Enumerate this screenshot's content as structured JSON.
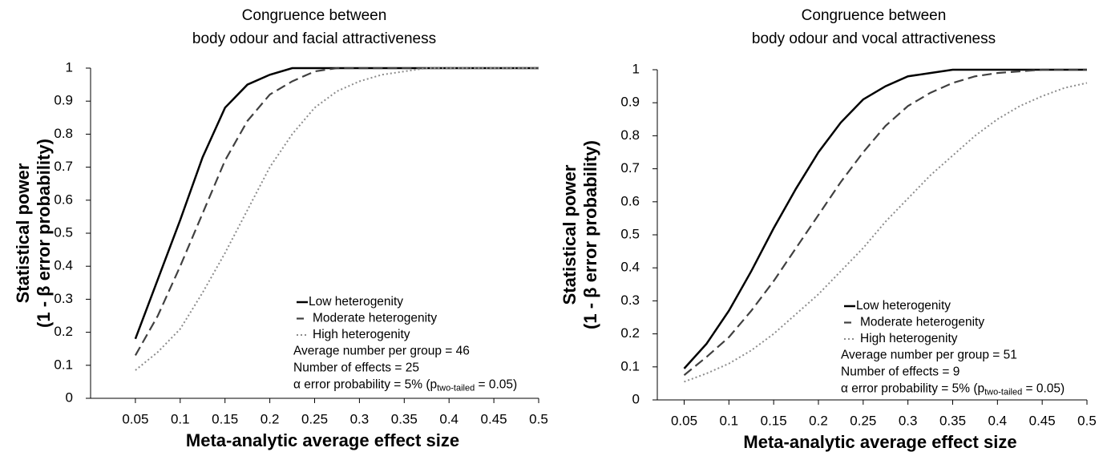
{
  "chart_data": [
    {
      "type": "line",
      "title": [
        "Congruence between",
        "body odour and facial attractiveness"
      ],
      "ylabel": [
        "Statistical power",
        "(1 - β error probability)"
      ],
      "xlabel": "Meta-analytic average effect size",
      "x": [
        0.05,
        0.075,
        0.1,
        0.125,
        0.15,
        0.175,
        0.2,
        0.225,
        0.25,
        0.275,
        0.3,
        0.325,
        0.35,
        0.375,
        0.4,
        0.425,
        0.45,
        0.475,
        0.5
      ],
      "series": [
        {
          "name": "Low heterogenity",
          "color": "#000000",
          "dash": "solid",
          "values": [
            0.18,
            0.36,
            0.54,
            0.73,
            0.88,
            0.95,
            0.98,
            1,
            1,
            1,
            1,
            1,
            1,
            1,
            1,
            1,
            1,
            1,
            1
          ]
        },
        {
          "name": "Moderate heterogenity",
          "color": "#404040",
          "dash": "dashed",
          "values": [
            0.13,
            0.25,
            0.4,
            0.56,
            0.72,
            0.84,
            0.92,
            0.96,
            0.99,
            1,
            1,
            1,
            1,
            1,
            1,
            1,
            1,
            1,
            1
          ]
        },
        {
          "name": "High heterogenity",
          "color": "#8c8c8c",
          "dash": "dotted",
          "values": [
            0.085,
            0.14,
            0.21,
            0.32,
            0.44,
            0.57,
            0.7,
            0.8,
            0.88,
            0.93,
            0.96,
            0.98,
            0.99,
            1,
            1,
            1,
            1,
            1,
            1
          ]
        }
      ],
      "annotations": [
        "Average number per group = 46",
        "Number of effects = 25"
      ],
      "alpha_note": [
        "α error probability = 5% (p",
        "two-tailed",
        " = 0.05)"
      ],
      "xlim": [
        0,
        0.5
      ],
      "ylim": [
        0,
        1
      ],
      "xticks": [
        0.05,
        0.1,
        0.15,
        0.2,
        0.25,
        0.3,
        0.35,
        0.4,
        0.45,
        0.5
      ],
      "yticks": [
        0,
        0.1,
        0.2,
        0.3,
        0.4,
        0.5,
        0.6,
        0.7,
        0.8,
        0.9,
        1
      ]
    },
    {
      "type": "line",
      "title": [
        "Congruence between",
        "body odour and vocal attractiveness"
      ],
      "ylabel": [
        "Statistical power",
        "(1 - β error probability)"
      ],
      "xlabel": "Meta-analytic average effect size",
      "x": [
        0.05,
        0.075,
        0.1,
        0.125,
        0.15,
        0.175,
        0.2,
        0.225,
        0.25,
        0.275,
        0.3,
        0.325,
        0.35,
        0.375,
        0.4,
        0.425,
        0.45,
        0.475,
        0.5
      ],
      "series": [
        {
          "name": "Low heterogenity",
          "color": "#000000",
          "dash": "solid",
          "values": [
            0.095,
            0.17,
            0.27,
            0.39,
            0.52,
            0.64,
            0.75,
            0.84,
            0.91,
            0.95,
            0.98,
            0.99,
            1,
            1,
            1,
            1,
            1,
            1,
            1
          ]
        },
        {
          "name": "Moderate heterogenity",
          "color": "#404040",
          "dash": "dashed",
          "values": [
            0.075,
            0.13,
            0.19,
            0.27,
            0.36,
            0.46,
            0.56,
            0.66,
            0.75,
            0.83,
            0.89,
            0.93,
            0.96,
            0.98,
            0.99,
            0.995,
            1,
            1,
            1
          ]
        },
        {
          "name": "High heterogenity",
          "color": "#8c8c8c",
          "dash": "dotted",
          "values": [
            0.055,
            0.08,
            0.11,
            0.15,
            0.2,
            0.26,
            0.32,
            0.39,
            0.46,
            0.54,
            0.61,
            0.68,
            0.74,
            0.8,
            0.85,
            0.89,
            0.92,
            0.945,
            0.96
          ]
        }
      ],
      "annotations": [
        "Average number per group = 51",
        "Number of effects = 9"
      ],
      "alpha_note": [
        "α error probability = 5% (p",
        "two-tailed",
        " = 0.05)"
      ],
      "xlim": [
        0.02,
        0.5
      ],
      "ylim": [
        0,
        1
      ],
      "xticks": [
        0.05,
        0.1,
        0.15,
        0.2,
        0.25,
        0.3,
        0.35,
        0.4,
        0.45,
        0.5
      ],
      "yticks": [
        0,
        0.1,
        0.2,
        0.3,
        0.4,
        0.5,
        0.6,
        0.7,
        0.8,
        0.9,
        1
      ]
    }
  ]
}
